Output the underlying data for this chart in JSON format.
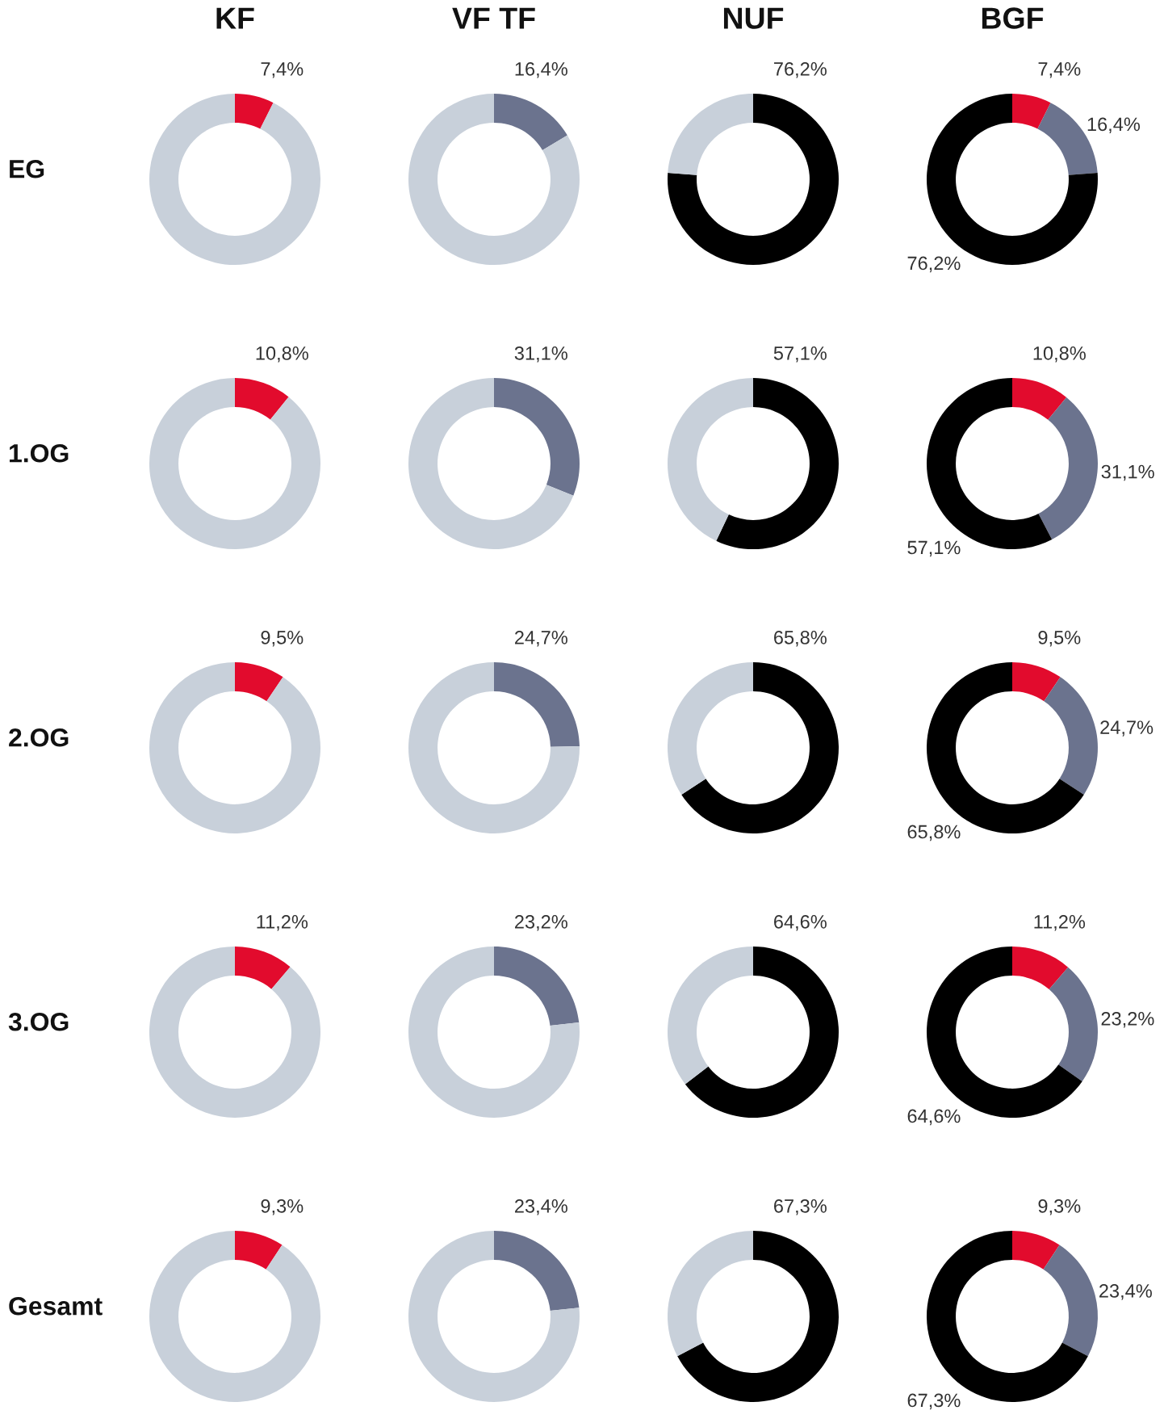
{
  "chart_data": [
    {
      "type": "donut",
      "title": "KF",
      "ylabel": "EG",
      "categories": [
        null,
        null
      ],
      "values": [
        7.4,
        92.6
      ],
      "colors": [
        "#e20b2d",
        "#c8d0da"
      ],
      "value_labels": [
        "7,4%",
        null
      ]
    },
    {
      "type": "donut",
      "title": "VF TF",
      "categories": [
        null,
        null
      ],
      "values": [
        16.4,
        83.6
      ],
      "colors": [
        "#6b738e",
        "#c8d0da"
      ],
      "value_labels": [
        "16,4%",
        null
      ]
    },
    {
      "type": "donut",
      "title": "NUF",
      "categories": [
        null,
        null
      ],
      "values": [
        76.2,
        23.8
      ],
      "colors": [
        "#000000",
        "#c8d0da"
      ],
      "value_labels": [
        "76,2%",
        null
      ]
    },
    {
      "type": "donut",
      "title": "BGF",
      "categories": [
        null,
        null,
        null
      ],
      "values": [
        7.4,
        16.4,
        76.2
      ],
      "colors": [
        "#e20b2d",
        "#6b738e",
        "#000000"
      ],
      "value_labels": [
        "7,4%",
        "16,4%",
        "76,2%"
      ]
    },
    {
      "type": "donut",
      "ylabel": "1.OG",
      "categories": [
        null,
        null
      ],
      "values": [
        10.8,
        89.2
      ],
      "colors": [
        "#e20b2d",
        "#c8d0da"
      ],
      "value_labels": [
        "10,8%",
        null
      ]
    },
    {
      "type": "donut",
      "categories": [
        null,
        null
      ],
      "values": [
        31.1,
        68.9
      ],
      "colors": [
        "#6b738e",
        "#c8d0da"
      ],
      "value_labels": [
        "31,1%",
        null
      ]
    },
    {
      "type": "donut",
      "categories": [
        null,
        null
      ],
      "values": [
        57.1,
        42.9
      ],
      "colors": [
        "#000000",
        "#c8d0da"
      ],
      "value_labels": [
        "57,1%",
        null
      ]
    },
    {
      "type": "donut",
      "categories": [
        null,
        null,
        null
      ],
      "values": [
        10.8,
        31.1,
        57.1
      ],
      "colors": [
        "#e20b2d",
        "#6b738e",
        "#000000"
      ],
      "value_labels": [
        "10,8%",
        "31,1%",
        "57,1%"
      ]
    },
    {
      "type": "donut",
      "ylabel": "2.OG",
      "categories": [
        null,
        null
      ],
      "values": [
        9.5,
        90.5
      ],
      "colors": [
        "#e20b2d",
        "#c8d0da"
      ],
      "value_labels": [
        "9,5%",
        null
      ]
    },
    {
      "type": "donut",
      "categories": [
        null,
        null
      ],
      "values": [
        24.7,
        75.3
      ],
      "colors": [
        "#6b738e",
        "#c8d0da"
      ],
      "value_labels": [
        "24,7%",
        null
      ]
    },
    {
      "type": "donut",
      "categories": [
        null,
        null
      ],
      "values": [
        65.8,
        34.2
      ],
      "colors": [
        "#000000",
        "#c8d0da"
      ],
      "value_labels": [
        "65,8%",
        null
      ]
    },
    {
      "type": "donut",
      "categories": [
        null,
        null,
        null
      ],
      "values": [
        9.5,
        24.7,
        65.8
      ],
      "colors": [
        "#e20b2d",
        "#6b738e",
        "#000000"
      ],
      "value_labels": [
        "9,5%",
        "24,7%",
        "65,8%"
      ]
    },
    {
      "type": "donut",
      "ylabel": "3.OG",
      "categories": [
        null,
        null
      ],
      "values": [
        11.2,
        88.8
      ],
      "colors": [
        "#e20b2d",
        "#c8d0da"
      ],
      "value_labels": [
        "11,2%",
        null
      ]
    },
    {
      "type": "donut",
      "categories": [
        null,
        null
      ],
      "values": [
        23.2,
        76.8
      ],
      "colors": [
        "#6b738e",
        "#c8d0da"
      ],
      "value_labels": [
        "23,2%",
        null
      ]
    },
    {
      "type": "donut",
      "categories": [
        null,
        null
      ],
      "values": [
        64.6,
        35.4
      ],
      "colors": [
        "#000000",
        "#c8d0da"
      ],
      "value_labels": [
        "64,6%",
        null
      ]
    },
    {
      "type": "donut",
      "categories": [
        null,
        null,
        null
      ],
      "values": [
        11.2,
        23.2,
        64.6
      ],
      "colors": [
        "#e20b2d",
        "#6b738e",
        "#000000"
      ],
      "value_labels": [
        "11,2%",
        "23,2%",
        "64,6%"
      ]
    },
    {
      "type": "donut",
      "ylabel": "Gesamt",
      "categories": [
        null,
        null
      ],
      "values": [
        9.3,
        90.7
      ],
      "colors": [
        "#e20b2d",
        "#c8d0da"
      ],
      "value_labels": [
        "9,3%",
        null
      ]
    },
    {
      "type": "donut",
      "categories": [
        null,
        null
      ],
      "values": [
        23.4,
        76.6
      ],
      "colors": [
        "#6b738e",
        "#c8d0da"
      ],
      "value_labels": [
        "23,4%",
        null
      ]
    },
    {
      "type": "donut",
      "categories": [
        null,
        null
      ],
      "values": [
        67.3,
        32.7
      ],
      "colors": [
        "#000000",
        "#c8d0da"
      ],
      "value_labels": [
        "67,3%",
        null
      ]
    },
    {
      "type": "donut",
      "categories": [
        null,
        null,
        null
      ],
      "values": [
        9.3,
        23.4,
        67.3
      ],
      "colors": [
        "#e20b2d",
        "#6b738e",
        "#000000"
      ],
      "value_labels": [
        "9,3%",
        "23,4%",
        "67,3%"
      ]
    }
  ]
}
